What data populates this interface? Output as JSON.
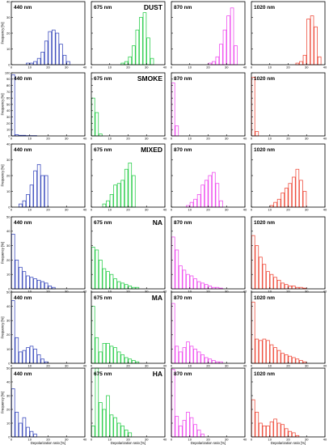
{
  "figure": {
    "xlabel": "Depolarization ratio [%]",
    "ylabel": "Frequency [%]",
    "wavelengths": [
      {
        "label": "440 nm",
        "color": "#3344bb"
      },
      {
        "label": "675 nm",
        "color": "#22cc44"
      },
      {
        "label": "870 nm",
        "color": "#ee44ee"
      },
      {
        "label": "1020 nm",
        "color": "#ee4433"
      }
    ]
  },
  "chart_data": [
    {
      "type": "bar",
      "aerosol": "DUST",
      "xlim": [
        0,
        40
      ],
      "ylim": [
        0,
        40
      ],
      "xticks": [
        0,
        10,
        20,
        30,
        40
      ],
      "yticks": [
        0,
        10,
        20,
        30,
        40
      ],
      "bin_width": 2,
      "xlabel": "",
      "ylabel": "Frequency [%]",
      "series": [
        {
          "name": "440 nm",
          "x": [
            8,
            10,
            12,
            14,
            16,
            18,
            20,
            22,
            24,
            26,
            28,
            30
          ],
          "values": [
            1,
            1,
            2,
            4,
            8,
            15,
            21,
            22,
            20,
            13,
            6,
            2
          ]
        },
        {
          "name": "675 nm",
          "x": [
            16,
            18,
            20,
            22,
            24,
            26,
            28,
            30,
            32
          ],
          "values": [
            1,
            2,
            5,
            12,
            22,
            30,
            33,
            17,
            4
          ]
        },
        {
          "name": "870 nm",
          "x": [
            20,
            22,
            24,
            26,
            28,
            30,
            32,
            34
          ],
          "values": [
            1,
            2,
            5,
            13,
            22,
            31,
            36,
            12
          ]
        },
        {
          "name": "1020 nm",
          "x": [
            24,
            26,
            28,
            30,
            32,
            34,
            36
          ],
          "values": [
            1,
            2,
            6,
            29,
            31,
            24,
            5
          ]
        }
      ]
    },
    {
      "type": "bar",
      "aerosol": "SMOKE",
      "xlim": [
        0,
        40
      ],
      "ylim": [
        0,
        100
      ],
      "xticks": [
        0,
        10,
        20,
        30,
        40
      ],
      "yticks": [
        0,
        10,
        20,
        30,
        40,
        50,
        60,
        70,
        80,
        90,
        100
      ],
      "bin_width": 2,
      "xlabel": "",
      "ylabel": "Frequency [%]",
      "series": [
        {
          "name": "440 nm",
          "x": [
            0,
            2,
            4,
            6,
            8,
            10,
            12
          ],
          "values": [
            97,
            2,
            1,
            1,
            0.5,
            0.5,
            0.5
          ]
        },
        {
          "name": "675 nm",
          "x": [
            0,
            2,
            4
          ],
          "values": [
            60,
            37,
            3
          ]
        },
        {
          "name": "870 nm",
          "x": [
            0,
            2
          ],
          "values": [
            84,
            16
          ]
        },
        {
          "name": "1020 nm",
          "x": [
            0,
            2
          ],
          "values": [
            93,
            7
          ]
        }
      ]
    },
    {
      "type": "bar",
      "aerosol": "MIXED",
      "xlim": [
        0,
        40
      ],
      "ylim": [
        0,
        40
      ],
      "xticks": [
        0,
        10,
        20,
        30,
        40
      ],
      "yticks": [
        0,
        10,
        20,
        30,
        40
      ],
      "bin_width": 2,
      "xlabel": "",
      "ylabel": "Frequency [%]",
      "series": [
        {
          "name": "440 nm",
          "x": [
            4,
            6,
            8,
            10,
            12,
            14,
            16,
            18
          ],
          "values": [
            2,
            4,
            8,
            14,
            23,
            27,
            20,
            20
          ]
        },
        {
          "name": "675 nm",
          "x": [
            6,
            8,
            10,
            12,
            14,
            16,
            18,
            20,
            22
          ],
          "values": [
            2,
            4,
            8,
            14,
            15,
            17,
            24,
            28,
            20
          ]
        },
        {
          "name": "870 nm",
          "x": [
            8,
            10,
            12,
            14,
            16,
            18,
            20,
            22,
            24,
            26
          ],
          "values": [
            1,
            3,
            5,
            8,
            14,
            17,
            20,
            22,
            15,
            4
          ]
        },
        {
          "name": "1020 nm",
          "x": [
            10,
            12,
            14,
            16,
            18,
            20,
            22,
            24,
            26,
            28
          ],
          "values": [
            1,
            3,
            5,
            9,
            12,
            15,
            19,
            24,
            17,
            10
          ]
        }
      ]
    },
    {
      "type": "bar",
      "aerosol": "NA",
      "xlim": [
        0,
        40
      ],
      "ylim": [
        0,
        50
      ],
      "xticks": [
        0,
        10,
        20,
        30,
        40
      ],
      "yticks": [
        0,
        10,
        20,
        30,
        40,
        50
      ],
      "bin_width": 2,
      "xlabel": "",
      "ylabel": "Frequency [%]",
      "series": [
        {
          "name": "440 nm",
          "x": [
            0,
            2,
            4,
            6,
            8,
            10,
            12,
            14,
            16,
            18,
            20,
            22
          ],
          "values": [
            38,
            20,
            15,
            12,
            9,
            8,
            7,
            6,
            5,
            4,
            2,
            1
          ]
        },
        {
          "name": "675 nm",
          "x": [
            0,
            2,
            4,
            6,
            8,
            10,
            12,
            14,
            16,
            18,
            20,
            22,
            24
          ],
          "values": [
            29,
            27,
            20,
            14,
            12,
            10,
            7,
            5,
            4,
            3,
            2,
            1,
            1
          ]
        },
        {
          "name": "870 nm",
          "x": [
            0,
            2,
            4,
            6,
            8,
            10,
            12,
            14,
            16,
            18,
            20,
            22,
            24,
            26
          ],
          "values": [
            36,
            27,
            16,
            13,
            10,
            9,
            7,
            5,
            4,
            3,
            2,
            1,
            1,
            0.5
          ]
        },
        {
          "name": "1020 nm",
          "x": [
            0,
            2,
            4,
            6,
            8,
            10,
            12,
            14,
            16,
            18,
            20,
            22,
            24,
            26,
            28
          ],
          "values": [
            37,
            30,
            22,
            17,
            12,
            10,
            8,
            6,
            4,
            3,
            2,
            2,
            1,
            1,
            0.5
          ]
        }
      ]
    },
    {
      "type": "bar",
      "aerosol": "MA",
      "xlim": [
        0,
        40
      ],
      "ylim": [
        0,
        50
      ],
      "xticks": [
        0,
        10,
        20,
        30,
        40
      ],
      "yticks": [
        0,
        10,
        20,
        30,
        40,
        50
      ],
      "bin_width": 2,
      "xlabel": "",
      "ylabel": "Frequency [%]",
      "series": [
        {
          "name": "440 nm",
          "x": [
            0,
            2,
            4,
            6,
            8,
            10,
            12,
            14,
            16,
            18
          ],
          "values": [
            44,
            18,
            8,
            9,
            11,
            12,
            10,
            6,
            3,
            1
          ]
        },
        {
          "name": "675 nm",
          "x": [
            0,
            2,
            4,
            6,
            8,
            10,
            12,
            14,
            16,
            18,
            20,
            22,
            24
          ],
          "values": [
            40,
            18,
            8,
            14,
            14,
            12,
            11,
            8,
            6,
            4,
            3,
            2,
            1
          ]
        },
        {
          "name": "870 nm",
          "x": [
            0,
            2,
            4,
            6,
            8,
            10,
            12,
            14,
            16,
            18,
            20,
            22,
            24,
            26
          ],
          "values": [
            42,
            12,
            8,
            11,
            15,
            12,
            10,
            8,
            6,
            4,
            3,
            2,
            1,
            1
          ]
        },
        {
          "name": "1020 nm",
          "x": [
            0,
            2,
            4,
            6,
            8,
            10,
            12,
            14,
            16,
            18,
            20,
            22,
            24,
            26,
            28
          ],
          "values": [
            43,
            17,
            16,
            17,
            16,
            13,
            11,
            9,
            7,
            6,
            5,
            4,
            3,
            2,
            1
          ]
        }
      ]
    },
    {
      "type": "bar",
      "aerosol": "HA",
      "xlim": [
        0,
        40
      ],
      "ylim": [
        0,
        50
      ],
      "xticks": [
        0,
        10,
        20,
        30,
        40
      ],
      "yticks": [
        0,
        10,
        20,
        30,
        40,
        50
      ],
      "bin_width": 2,
      "xlabel": "Depolarization ratio [%]",
      "ylabel": "Frequency [%]",
      "series": [
        {
          "name": "440 nm",
          "x": [
            0,
            2,
            4,
            6,
            8,
            10,
            12
          ],
          "values": [
            35,
            18,
            10,
            14,
            7,
            4,
            2
          ]
        },
        {
          "name": "675 nm",
          "x": [
            0,
            2,
            4,
            6,
            8,
            10,
            12,
            14,
            16,
            18,
            20
          ],
          "values": [
            8,
            50,
            25,
            20,
            30,
            16,
            14,
            10,
            8,
            5,
            3
          ]
        },
        {
          "name": "870 nm",
          "x": [
            0,
            2,
            4,
            6,
            8,
            10,
            12,
            14,
            16
          ],
          "values": [
            49,
            15,
            8,
            12,
            18,
            14,
            9,
            5,
            2
          ]
        },
        {
          "name": "1020 nm",
          "x": [
            0,
            2,
            4,
            6,
            8,
            10,
            12,
            14,
            16,
            18,
            20,
            22,
            24
          ],
          "values": [
            27,
            18,
            10,
            8,
            8,
            11,
            13,
            10,
            9,
            6,
            4,
            3,
            1
          ]
        }
      ]
    }
  ]
}
